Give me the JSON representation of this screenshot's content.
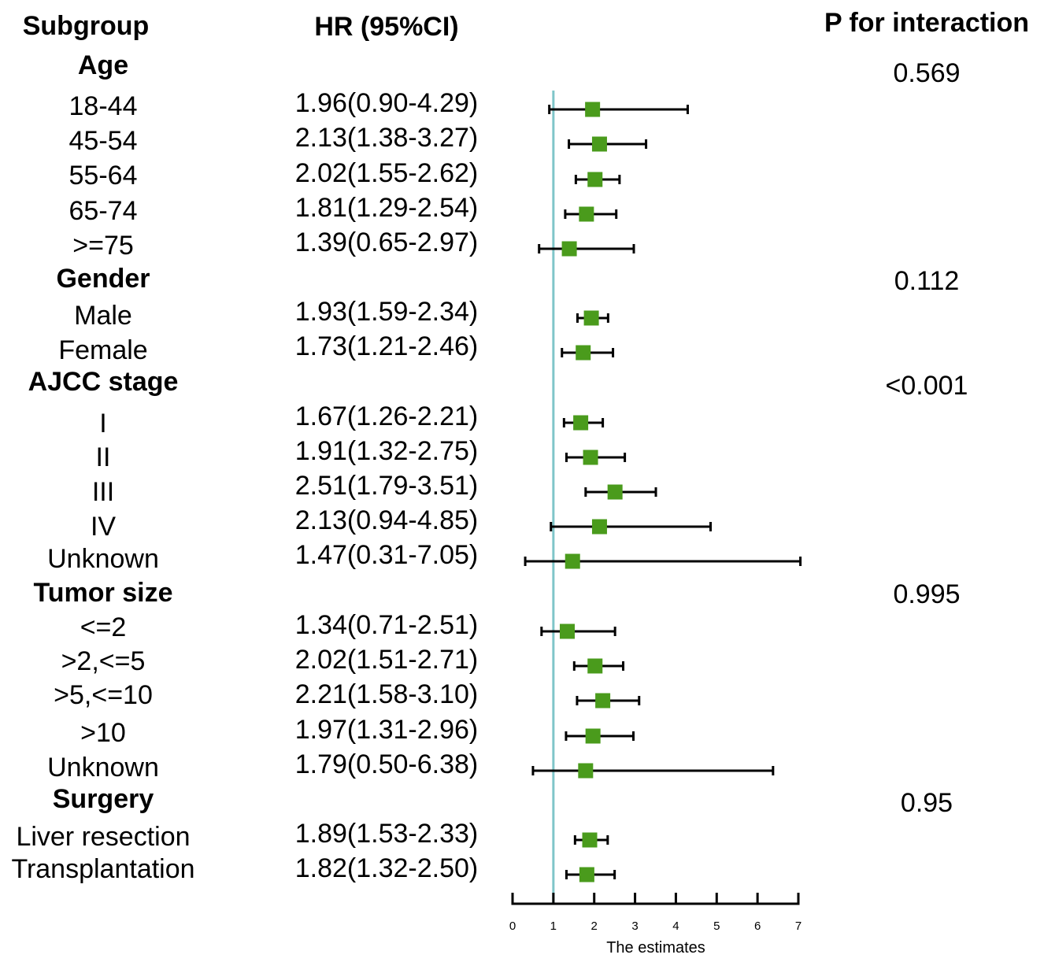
{
  "header": {
    "subgroup": "Subgroup",
    "hr": "HR (95%CI)",
    "p_interaction": "P for interaction"
  },
  "colors": {
    "marker": "#4a9b1c",
    "reference_line": "#7fc6c9",
    "whisker": "#000000"
  },
  "chart_data": {
    "type": "scatter",
    "title": "",
    "xlabel": "The estimates",
    "ylabel": "",
    "xlim": [
      0,
      7
    ],
    "xticks": [
      0,
      1,
      2,
      3,
      4,
      5,
      6,
      7
    ],
    "reference_line": 1,
    "groups": [
      {
        "name": "Age",
        "p_interaction": "0.569",
        "rows": [
          {
            "label": "18-44",
            "hr_text": "1.96(0.90-4.29)",
            "estimate": 1.96,
            "lower": 0.9,
            "upper": 4.29
          },
          {
            "label": "45-54",
            "hr_text": "2.13(1.38-3.27)",
            "estimate": 2.13,
            "lower": 1.38,
            "upper": 3.27
          },
          {
            "label": "55-64",
            "hr_text": "2.02(1.55-2.62)",
            "estimate": 2.02,
            "lower": 1.55,
            "upper": 2.62
          },
          {
            "label": "65-74",
            "hr_text": "1.81(1.29-2.54)",
            "estimate": 1.81,
            "lower": 1.29,
            "upper": 2.54
          },
          {
            "label": ">=75",
            "hr_text": "1.39(0.65-2.97)",
            "estimate": 1.39,
            "lower": 0.65,
            "upper": 2.97
          }
        ]
      },
      {
        "name": "Gender",
        "p_interaction": "0.112",
        "rows": [
          {
            "label": "Male",
            "hr_text": "1.93(1.59-2.34)",
            "estimate": 1.93,
            "lower": 1.59,
            "upper": 2.34
          },
          {
            "label": "Female",
            "hr_text": "1.73(1.21-2.46)",
            "estimate": 1.73,
            "lower": 1.21,
            "upper": 2.46
          }
        ]
      },
      {
        "name": "AJCC stage",
        "p_interaction": "<0.001",
        "rows": [
          {
            "label": "I",
            "hr_text": "1.67(1.26-2.21)",
            "estimate": 1.67,
            "lower": 1.26,
            "upper": 2.21
          },
          {
            "label": "II",
            "hr_text": "1.91(1.32-2.75)",
            "estimate": 1.91,
            "lower": 1.32,
            "upper": 2.75
          },
          {
            "label": "III",
            "hr_text": "2.51(1.79-3.51)",
            "estimate": 2.51,
            "lower": 1.79,
            "upper": 3.51
          },
          {
            "label": "IV",
            "hr_text": "2.13(0.94-4.85)",
            "estimate": 2.13,
            "lower": 0.94,
            "upper": 4.85
          },
          {
            "label": "Unknown",
            "hr_text": "1.47(0.31-7.05)",
            "estimate": 1.47,
            "lower": 0.31,
            "upper": 7.05
          }
        ]
      },
      {
        "name": "Tumor size",
        "p_interaction": "0.995",
        "rows": [
          {
            "label": "<=2",
            "hr_text": "1.34(0.71-2.51)",
            "estimate": 1.34,
            "lower": 0.71,
            "upper": 2.51
          },
          {
            "label": ">2,<=5",
            "hr_text": "2.02(1.51-2.71)",
            "estimate": 2.02,
            "lower": 1.51,
            "upper": 2.71
          },
          {
            "label": ">5,<=10",
            "hr_text": "2.21(1.58-3.10)",
            "estimate": 2.21,
            "lower": 1.58,
            "upper": 3.1
          },
          {
            "label": ">10",
            "hr_text": "1.97(1.31-2.96)",
            "estimate": 1.97,
            "lower": 1.31,
            "upper": 2.96
          },
          {
            "label": "Unknown",
            "hr_text": "1.79(0.50-6.38)",
            "estimate": 1.79,
            "lower": 0.5,
            "upper": 6.38
          }
        ]
      },
      {
        "name": "Surgery",
        "p_interaction": "0.95",
        "rows": [
          {
            "label": "Liver resection",
            "hr_text": "1.89(1.53-2.33)",
            "estimate": 1.89,
            "lower": 1.53,
            "upper": 2.33
          },
          {
            "label": "Transplantation",
            "hr_text": "1.82(1.32-2.50)",
            "estimate": 1.82,
            "lower": 1.32,
            "upper": 2.5
          }
        ]
      }
    ]
  }
}
